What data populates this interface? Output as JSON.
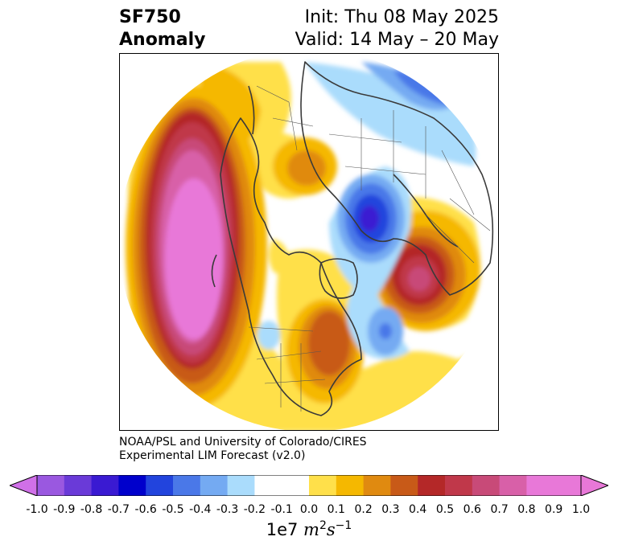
{
  "header": {
    "title_line1": "SF750",
    "title_line2": "Anomaly",
    "init": "Init: Thu 08 May 2025",
    "valid": "Valid: 14 May – 20 May"
  },
  "credit": {
    "line1": "NOAA/PSL and University of Colorado/CIRES",
    "line2": "Experimental LIM Forecast (v2.0)"
  },
  "colorbar": {
    "levels": [
      -1.0,
      -0.9,
      -0.8,
      -0.7,
      -0.6,
      -0.5,
      -0.4,
      -0.3,
      -0.2,
      -0.1,
      0.0,
      0.1,
      0.2,
      0.3,
      0.4,
      0.5,
      0.6,
      0.7,
      0.8,
      0.9,
      1.0
    ],
    "tick_labels": [
      "-1.0",
      "-0.9",
      "-0.8",
      "-0.7",
      "-0.6",
      "-0.5",
      "-0.4",
      "-0.3",
      "-0.2",
      "-0.1",
      "0.0",
      "0.1",
      "0.2",
      "0.3",
      "0.4",
      "0.5",
      "0.6",
      "0.7",
      "0.8",
      "0.9",
      "1.0"
    ],
    "colors": [
      "#9a58e0",
      "#6a3ad8",
      "#3a1ad2",
      "#0000cc",
      "#2244dd",
      "#4a78e8",
      "#74aaf2",
      "#aadcfc",
      "#ffffff",
      "#ffffff",
      "#ffe04a",
      "#f5b800",
      "#e08a10",
      "#c85a18",
      "#b42828",
      "#c0384a",
      "#c84a78",
      "#d860a8",
      "#e878d8",
      "#e878d8"
    ],
    "under_color": "#d070e8",
    "over_color": "#e878d8",
    "units_prefix": "1e7 ",
    "units_var": "m",
    "units_exp1": "2",
    "units_var2": "s",
    "units_exp2": "−1"
  }
}
